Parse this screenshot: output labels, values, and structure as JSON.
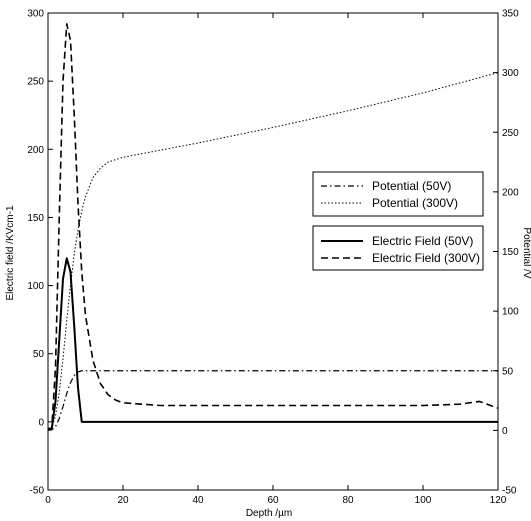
{
  "chart_data": {
    "type": "line",
    "xlabel": "Depth /µm",
    "ylabel_left": "Electric field /KVcm-1",
    "ylabel_right": "Potential /V",
    "xlim": [
      0,
      120
    ],
    "ylim_left": [
      -50,
      300
    ],
    "ylim_right": [
      -50,
      350
    ],
    "xticks": [
      0,
      20,
      40,
      60,
      80,
      100,
      120
    ],
    "yticks_left": [
      -50,
      0,
      50,
      100,
      150,
      200,
      250,
      300
    ],
    "yticks_right": [
      -50,
      0,
      50,
      100,
      150,
      200,
      250,
      300,
      350
    ],
    "grid": false,
    "legends": [
      {
        "placement": "upper-right",
        "entries": [
          "pot50",
          "pot300"
        ]
      },
      {
        "placement": "middle-right",
        "entries": [
          "ef50",
          "ef300"
        ]
      }
    ],
    "series": [
      {
        "id": "pot50",
        "name": "Potential (50V)",
        "axis": "right",
        "style": "dashdot",
        "x": [
          0,
          1,
          2,
          3,
          4,
          5,
          6,
          7,
          8,
          9,
          10,
          20,
          40,
          60,
          80,
          100,
          120
        ],
        "y": [
          0,
          0.5,
          3,
          10,
          20,
          31,
          40,
          46,
          49,
          50,
          50,
          50,
          50,
          50,
          50,
          50,
          50
        ]
      },
      {
        "id": "pot300",
        "name": "Potential (300V)",
        "axis": "right",
        "style": "dotted",
        "x": [
          0,
          1,
          2,
          3,
          4,
          5,
          6,
          7,
          8,
          9,
          10,
          12,
          14,
          16,
          18,
          20,
          25,
          30,
          40,
          60,
          80,
          100,
          120
        ],
        "y": [
          0,
          2,
          12,
          32,
          60,
          92,
          122,
          148,
          168,
          184,
          196,
          212,
          220,
          225,
          227,
          229,
          232,
          235,
          241,
          254,
          268,
          283,
          300
        ]
      },
      {
        "id": "ef50",
        "name": "Electric Field (50V)",
        "axis": "left",
        "style": "solid",
        "x": [
          0,
          1,
          2,
          3,
          4,
          5,
          6,
          7,
          8,
          9,
          10,
          20,
          40,
          60,
          80,
          100,
          120
        ],
        "y": [
          -5,
          -5,
          15,
          60,
          105,
          120,
          110,
          70,
          25,
          0,
          0,
          0,
          0,
          0,
          0,
          0,
          0
        ]
      },
      {
        "id": "ef300",
        "name": "Electric Field (300V)",
        "axis": "left",
        "style": "dashed",
        "x": [
          0,
          1,
          2,
          3,
          4,
          5,
          6,
          7,
          8,
          9,
          10,
          12,
          14,
          16,
          18,
          20,
          25,
          30,
          40,
          60,
          80,
          100,
          110,
          115,
          120
        ],
        "y": [
          -5,
          -5,
          40,
          150,
          250,
          292,
          280,
          225,
          160,
          110,
          78,
          45,
          28,
          20,
          16,
          14,
          13,
          12,
          12,
          12,
          12,
          12,
          13,
          15,
          10
        ]
      }
    ]
  }
}
